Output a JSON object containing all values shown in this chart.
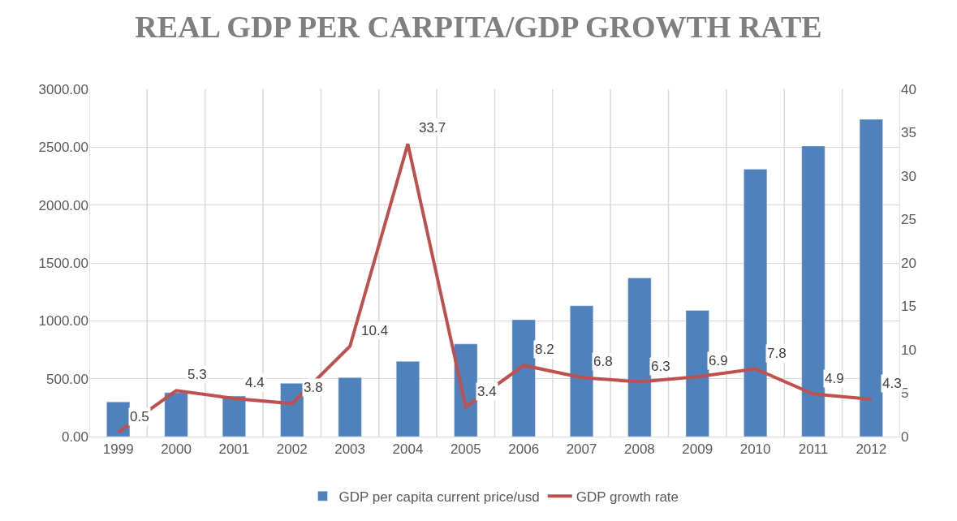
{
  "chart_data": {
    "type": "bar",
    "title": "REAL GDP PER CARPITA/GDP GROWTH RATE",
    "categories": [
      "1999",
      "2000",
      "2001",
      "2002",
      "2003",
      "2004",
      "2005",
      "2006",
      "2007",
      "2008",
      "2009",
      "2010",
      "2011",
      "2012"
    ],
    "series": [
      {
        "name": "GDP per capita current price/usd",
        "color": "#4f81bd",
        "values": [
          300,
          380,
          350,
          460,
          510,
          650,
          800,
          1010,
          1130,
          1370,
          1090,
          2310,
          2510,
          2740
        ]
      },
      {
        "name": "GDP growth rate",
        "type": "line",
        "axis": "y2",
        "color": "#c0504d",
        "values": [
          0.5,
          5.3,
          4.4,
          3.8,
          10.4,
          33.7,
          3.4,
          8.2,
          6.8,
          6.3,
          6.9,
          7.8,
          4.9,
          4.3
        ],
        "data_labels": true
      }
    ],
    "ylim": [
      0,
      3000
    ],
    "yticks": [
      {
        "value": 0,
        "label": "0.00"
      },
      {
        "value": 500,
        "label": "500.00"
      },
      {
        "value": 1000,
        "label": "1000.00"
      },
      {
        "value": 1500,
        "label": "1500.00"
      },
      {
        "value": 2000,
        "label": "2000.00"
      },
      {
        "value": 2500,
        "label": "2500.00"
      },
      {
        "value": 3000,
        "label": "3000.00"
      }
    ],
    "y2lim": [
      0,
      40
    ],
    "y2ticks": [
      0,
      5,
      10,
      15,
      20,
      25,
      30,
      35,
      40
    ],
    "grid": true,
    "legend": "bottom",
    "marker": "none",
    "line_style": "solid"
  }
}
